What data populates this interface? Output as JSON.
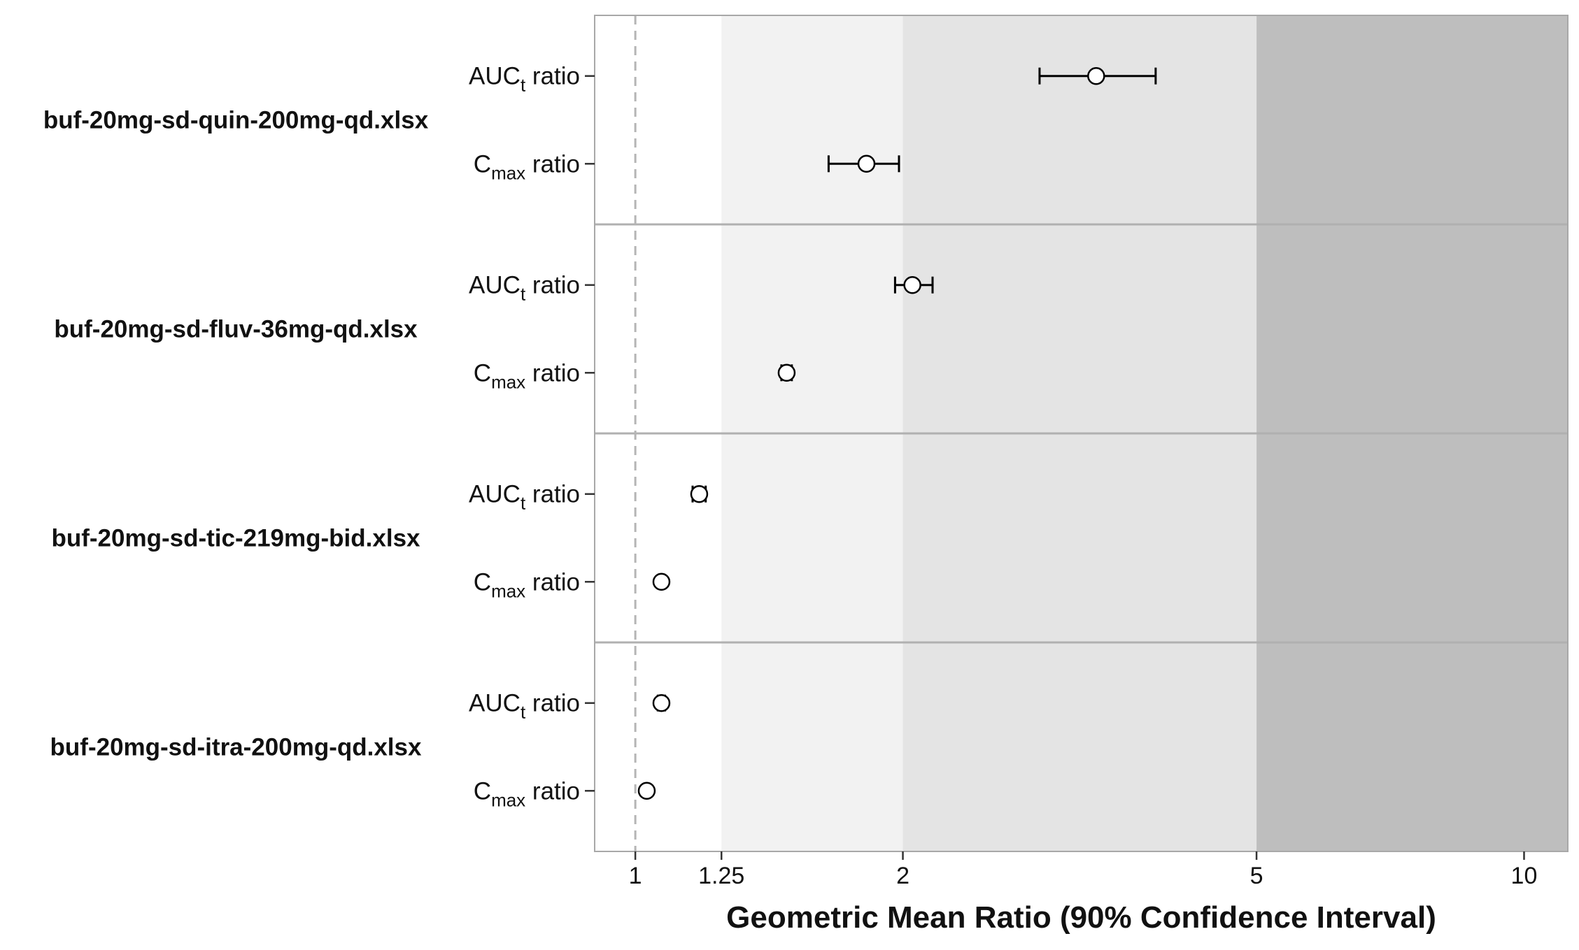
{
  "chart_data": {
    "type": "forest",
    "xlabel": "Geometric Mean Ratio (90% Confidence Interval)",
    "x_scale": "log",
    "xlim": [
      0.9,
      11.2
    ],
    "x_ticks": [
      {
        "value": 1,
        "label": "1"
      },
      {
        "value": 1.25,
        "label": "1.25"
      },
      {
        "value": 2,
        "label": "2"
      },
      {
        "value": 5,
        "label": "5"
      },
      {
        "value": 10,
        "label": "10"
      }
    ],
    "reference_line": 1,
    "shaded_bands": [
      {
        "from": 1.25,
        "to": 2,
        "color": "#f2f2f2"
      },
      {
        "from": 2,
        "to": 5,
        "color": "#e4e4e4"
      },
      {
        "from": 5,
        "to": 11.2,
        "color": "#bebebe"
      }
    ],
    "groups": [
      {
        "name": "buf-20mg-sd-quin-200mg-qd.xlsx",
        "rows": [
          {
            "metric": "AUC",
            "sub": "t",
            "suffix": " ratio",
            "estimate": 3.3,
            "lower": 2.85,
            "upper": 3.85
          },
          {
            "metric": "C",
            "sub": "max",
            "suffix": " ratio",
            "estimate": 1.82,
            "lower": 1.65,
            "upper": 1.98
          }
        ]
      },
      {
        "name": "buf-20mg-sd-fluv-36mg-qd.xlsx",
        "rows": [
          {
            "metric": "AUC",
            "sub": "t",
            "suffix": " ratio",
            "estimate": 2.05,
            "lower": 1.96,
            "upper": 2.16
          },
          {
            "metric": "C",
            "sub": "max",
            "suffix": " ratio",
            "estimate": 1.48,
            "lower": 1.46,
            "upper": 1.5
          }
        ]
      },
      {
        "name": "buf-20mg-sd-tic-219mg-bid.xlsx",
        "rows": [
          {
            "metric": "AUC",
            "sub": "t",
            "suffix": " ratio",
            "estimate": 1.18,
            "lower": 1.16,
            "upper": 1.2
          },
          {
            "metric": "C",
            "sub": "max",
            "suffix": " ratio",
            "estimate": 1.07,
            "lower": 1.07,
            "upper": 1.07
          }
        ]
      },
      {
        "name": "buf-20mg-sd-itra-200mg-qd.xlsx",
        "rows": [
          {
            "metric": "AUC",
            "sub": "t",
            "suffix": " ratio",
            "estimate": 1.07,
            "lower": 1.06,
            "upper": 1.08
          },
          {
            "metric": "C",
            "sub": "max",
            "suffix": " ratio",
            "estimate": 1.03,
            "lower": 1.03,
            "upper": 1.03
          }
        ]
      }
    ]
  }
}
